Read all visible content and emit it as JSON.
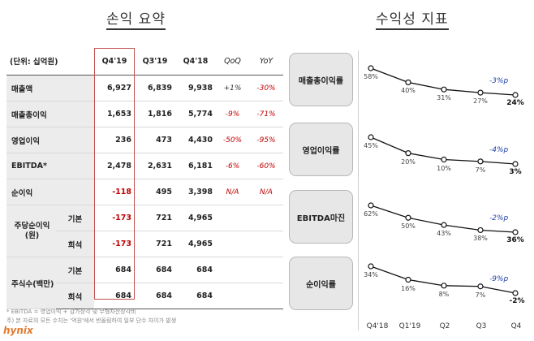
{
  "titles": {
    "left": "손익 요약",
    "right": "수익성 지표"
  },
  "table": {
    "unit_label": "(단위: 십억원)",
    "columns": [
      "Q4'19",
      "Q3'19",
      "Q4'18",
      "QoQ",
      "YoY"
    ],
    "rows": [
      {
        "label": "매출액",
        "q4_19": "6,927",
        "q3_19": "6,839",
        "q4_18": "9,938",
        "qoq": "+1%",
        "yoy": "-30%"
      },
      {
        "label": "매출총이익",
        "q4_19": "1,653",
        "q3_19": "1,816",
        "q4_18": "5,774",
        "qoq": "-9%",
        "yoy": "-71%"
      },
      {
        "label": "영업이익",
        "q4_19": "236",
        "q3_19": "473",
        "q4_18": "4,430",
        "qoq": "-50%",
        "yoy": "-95%"
      },
      {
        "label": "EBITDA*",
        "q4_19": "2,478",
        "q3_19": "2,631",
        "q4_18": "6,181",
        "qoq": "-6%",
        "yoy": "-60%"
      },
      {
        "label": "순이익",
        "q4_19": "-118",
        "q3_19": "495",
        "q4_18": "3,398",
        "qoq": "N/A",
        "yoy": "N/A"
      }
    ],
    "eps": {
      "label": "주당순이익\n(원)",
      "basic": {
        "label": "기본",
        "q4_19": "-173",
        "q3_19": "721",
        "q4_18": "4,965"
      },
      "diluted": {
        "label": "희석",
        "q4_19": "-173",
        "q3_19": "721",
        "q4_18": "4,965"
      }
    },
    "shares": {
      "label": "주식수(백만)",
      "basic": {
        "label": "기본",
        "q4_19": "684",
        "q3_19": "684",
        "q4_18": "684"
      },
      "diluted": {
        "label": "희석",
        "q4_19": "684",
        "q3_19": "684",
        "q4_18": "684"
      }
    },
    "notes": [
      "* EBITDA = 영업이익 + 감가상각 및 무형자산상각비",
      "주) 본 자료의 모든 수치는 '억원'에서 반올림하여 일부 단수 차이가 발생"
    ],
    "logo_text": "hynix"
  },
  "metrics": {
    "x_labels": [
      "Q4'18",
      "Q1'19",
      "Q2",
      "Q3",
      "Q4"
    ],
    "items": [
      {
        "label": "매출총이익률",
        "values": [
          58,
          40,
          31,
          27,
          24
        ],
        "labels": [
          "58%",
          "40%",
          "31%",
          "27%",
          "24%"
        ],
        "yoy": "-3%p"
      },
      {
        "label": "영업이익률",
        "values": [
          45,
          20,
          10,
          7,
          3
        ],
        "labels": [
          "45%",
          "20%",
          "10%",
          "7%",
          "3%"
        ],
        "yoy": "-4%p"
      },
      {
        "label": "EBITDA마진",
        "values": [
          62,
          50,
          43,
          38,
          36
        ],
        "labels": [
          "62%",
          "50%",
          "43%",
          "38%",
          "36%"
        ],
        "yoy": "-2%p"
      },
      {
        "label": "순이익률",
        "values": [
          34,
          16,
          8,
          7,
          -2
        ],
        "labels": [
          "34%",
          "16%",
          "8%",
          "7%",
          "-2%"
        ],
        "yoy": "-9%p"
      }
    ],
    "colors": {
      "line": "#111111",
      "yoy": "#1f3fa8",
      "negative": "#c00000",
      "highlight": "#c0504d"
    }
  }
}
